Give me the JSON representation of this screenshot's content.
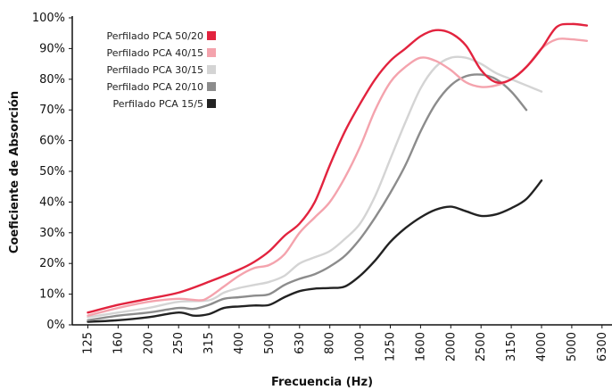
{
  "chart_data": {
    "type": "line",
    "xlabel": "Frecuencia (Hz)",
    "ylabel": "Coeficiente de Absorción",
    "ylim": [
      0,
      100
    ],
    "y_ticks": [
      "0%",
      "10%",
      "20%",
      "30%",
      "40%",
      "50%",
      "60%",
      "70%",
      "80%",
      "90%",
      "100%"
    ],
    "categories": [
      "125",
      "160",
      "200",
      "250",
      "315",
      "400",
      "500",
      "630",
      "800",
      "1000",
      "1250",
      "1600",
      "2000",
      "2500",
      "3150",
      "4000",
      "5000",
      "6300"
    ],
    "grid": false,
    "legend_position": "top-left",
    "series": [
      {
        "name": "Perfilado PCA 50/20",
        "color": "#e2233e",
        "points": [
          [
            0,
            4
          ],
          [
            1,
            6.5
          ],
          [
            2,
            8.5
          ],
          [
            3,
            10.5
          ],
          [
            4,
            14
          ],
          [
            5,
            18
          ],
          [
            5.5,
            20.5
          ],
          [
            6,
            24
          ],
          [
            6.5,
            29
          ],
          [
            7,
            33
          ],
          [
            7.5,
            40
          ],
          [
            8,
            52
          ],
          [
            8.5,
            63
          ],
          [
            9,
            72
          ],
          [
            9.5,
            80
          ],
          [
            10,
            86
          ],
          [
            10.5,
            90
          ],
          [
            11,
            94
          ],
          [
            11.5,
            96
          ],
          [
            12,
            95
          ],
          [
            12.5,
            91
          ],
          [
            13,
            83
          ],
          [
            13.5,
            79
          ],
          [
            14,
            80
          ],
          [
            14.5,
            84
          ],
          [
            15,
            90
          ],
          [
            15.5,
            97
          ],
          [
            16,
            98
          ],
          [
            16.5,
            97.5
          ]
        ]
      },
      {
        "name": "Perfilado PCA 40/15",
        "color": "#f4a3ad",
        "points": [
          [
            0,
            3
          ],
          [
            1,
            5.5
          ],
          [
            2,
            7.5
          ],
          [
            3,
            8.5
          ],
          [
            3.7,
            8
          ],
          [
            4,
            9
          ],
          [
            4.5,
            12.5
          ],
          [
            5,
            16
          ],
          [
            5.5,
            18.5
          ],
          [
            6,
            19.5
          ],
          [
            6.5,
            23
          ],
          [
            7,
            30
          ],
          [
            7.5,
            35
          ],
          [
            8,
            40
          ],
          [
            8.5,
            48
          ],
          [
            9,
            58
          ],
          [
            9.5,
            70
          ],
          [
            10,
            79
          ],
          [
            10.5,
            84
          ],
          [
            11,
            87
          ],
          [
            11.5,
            86
          ],
          [
            12,
            83
          ],
          [
            12.5,
            79
          ],
          [
            13,
            77.5
          ],
          [
            13.5,
            78
          ],
          [
            14,
            80
          ],
          [
            14.5,
            84
          ],
          [
            15,
            90
          ],
          [
            15.5,
            93
          ],
          [
            16,
            93
          ],
          [
            16.5,
            92.5
          ]
        ]
      },
      {
        "name": "Perfilado PCA 30/15",
        "color": "#d4d4d4",
        "points": [
          [
            0,
            2.5
          ],
          [
            1,
            4
          ],
          [
            2,
            5.5
          ],
          [
            3,
            7.5
          ],
          [
            4,
            8
          ],
          [
            4.5,
            10.5
          ],
          [
            5,
            12
          ],
          [
            5.5,
            13
          ],
          [
            6,
            14
          ],
          [
            6.5,
            16
          ],
          [
            7,
            20
          ],
          [
            7.5,
            22
          ],
          [
            8,
            24
          ],
          [
            8.5,
            28
          ],
          [
            9,
            33
          ],
          [
            9.5,
            42
          ],
          [
            10,
            54
          ],
          [
            10.5,
            66
          ],
          [
            11,
            77
          ],
          [
            11.5,
            84
          ],
          [
            12,
            87
          ],
          [
            12.5,
            87
          ],
          [
            13,
            85
          ],
          [
            13.5,
            82
          ],
          [
            14,
            80
          ],
          [
            14.5,
            78
          ],
          [
            15,
            76
          ]
        ]
      },
      {
        "name": "Perfilado PCA 20/10",
        "color": "#8c8c8c",
        "points": [
          [
            0,
            1.5
          ],
          [
            1,
            3
          ],
          [
            2,
            4
          ],
          [
            3,
            5.5
          ],
          [
            3.5,
            5.2
          ],
          [
            4,
            6.5
          ],
          [
            4.5,
            8.5
          ],
          [
            5,
            9
          ],
          [
            5.5,
            9.5
          ],
          [
            6,
            10
          ],
          [
            6.5,
            13
          ],
          [
            7,
            15
          ],
          [
            7.5,
            16.5
          ],
          [
            8,
            19
          ],
          [
            8.5,
            22.5
          ],
          [
            9,
            28
          ],
          [
            9.5,
            35
          ],
          [
            10,
            43
          ],
          [
            10.5,
            52
          ],
          [
            11,
            63
          ],
          [
            11.5,
            72
          ],
          [
            12,
            78
          ],
          [
            12.5,
            81
          ],
          [
            13,
            81.5
          ],
          [
            13.5,
            80
          ],
          [
            14,
            76
          ],
          [
            14.5,
            70
          ]
        ]
      },
      {
        "name": "Perfilado PCA 15/5",
        "color": "#222222",
        "points": [
          [
            0,
            1
          ],
          [
            1,
            1.5
          ],
          [
            2,
            2.5
          ],
          [
            3,
            4
          ],
          [
            3.5,
            3
          ],
          [
            4,
            3.5
          ],
          [
            4.5,
            5.5
          ],
          [
            5,
            6
          ],
          [
            5.5,
            6.3
          ],
          [
            6,
            6.5
          ],
          [
            6.5,
            9
          ],
          [
            7,
            11
          ],
          [
            7.5,
            11.8
          ],
          [
            8,
            12
          ],
          [
            8.5,
            12.5
          ],
          [
            9,
            16
          ],
          [
            9.5,
            21
          ],
          [
            10,
            27
          ],
          [
            10.5,
            31.5
          ],
          [
            11,
            35
          ],
          [
            11.5,
            37.5
          ],
          [
            12,
            38.5
          ],
          [
            12.5,
            37
          ],
          [
            13,
            35.5
          ],
          [
            13.5,
            36
          ],
          [
            14,
            38
          ],
          [
            14.5,
            41
          ],
          [
            15,
            47
          ]
        ]
      }
    ]
  }
}
